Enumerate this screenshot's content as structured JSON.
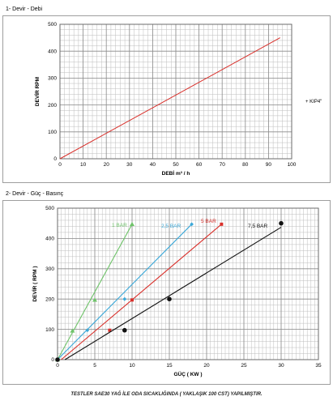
{
  "headings": {
    "chart1": "1- Devir - Debi",
    "chart2": "2- Devir - Güç - Basınç"
  },
  "footnote": "TESTLER SAE30 YAĞ İLE ODA SICAKLIĞINDA ( YAKLAŞIK 100 CST) YAPILMIŞTIR.",
  "chart_data": [
    {
      "type": "line",
      "title": "",
      "xlabel": "DEBİ m³ / h",
      "ylabel": "DEVİR RPM",
      "xlim": [
        0,
        100
      ],
      "ylim": [
        0,
        500
      ],
      "xticks": [
        0,
        10,
        20,
        30,
        40,
        50,
        60,
        70,
        80,
        90,
        100
      ],
      "yticks": [
        0,
        100,
        200,
        300,
        400,
        500
      ],
      "grid": true,
      "legend_position": "right",
      "series": [
        {
          "name": "KIP4\"",
          "color": "#d9302b",
          "x": [
            0,
            95
          ],
          "y": [
            0,
            450
          ]
        }
      ]
    },
    {
      "type": "line",
      "title": "",
      "xlabel": "GÜÇ ( KW )",
      "ylabel": "DEVİR ( RPM )",
      "xlim": [
        0,
        35
      ],
      "ylim": [
        0,
        500
      ],
      "xticks": [
        0,
        5,
        10,
        15,
        20,
        25,
        30,
        35
      ],
      "yticks": [
        0,
        100,
        200,
        300,
        400,
        500
      ],
      "grid": true,
      "series": [
        {
          "name": "1 BAR",
          "color": "#6fc36a",
          "marker": "triangle",
          "x": [
            0,
            2,
            5,
            10
          ],
          "y": [
            0,
            95,
            197,
            447
          ],
          "line": {
            "x": [
              0,
              10
            ],
            "y": [
              0,
              447
            ]
          }
        },
        {
          "name": "2,5 BAR",
          "color": "#3ba8d8",
          "marker": "diamond",
          "x": [
            0,
            4,
            9,
            18
          ],
          "y": [
            0,
            97,
            200,
            447
          ],
          "line": {
            "x": [
              0,
              18
            ],
            "y": [
              0,
              447
            ]
          }
        },
        {
          "name": "5 BAR",
          "color": "#d9302b",
          "marker": "square",
          "x": [
            0,
            7,
            10,
            22
          ],
          "y": [
            0,
            97,
            197,
            447
          ],
          "line": {
            "x": [
              0.5,
              22
            ],
            "y": [
              0,
              447
            ]
          }
        },
        {
          "name": "7,5 BAR",
          "color": "#111111",
          "marker": "circle",
          "x": [
            0,
            9,
            15,
            30
          ],
          "y": [
            0,
            97,
            200,
            450
          ],
          "line": {
            "x": [
              1,
              30
            ],
            "y": [
              0,
              437
            ]
          }
        }
      ]
    }
  ]
}
